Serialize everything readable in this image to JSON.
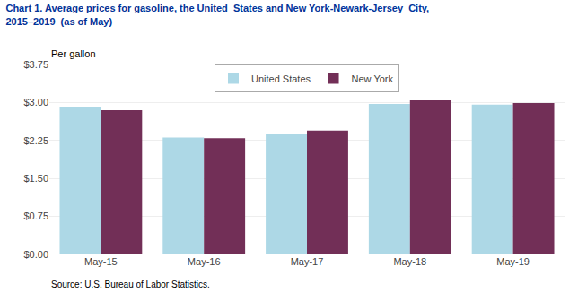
{
  "chart_data": {
    "type": "bar",
    "title": "Chart 1. Average prices for gasoline, the United  States and New York-Newark-Jersey  City,",
    "subtitle": "2015–2019  (as of May)",
    "ylabel": "Per gallon",
    "annotations": [
      "Source: U.S. Bureau of Labor Statistics."
    ],
    "categories": [
      "May-15",
      "May-16",
      "May-17",
      "May-18",
      "May-19"
    ],
    "series": [
      {
        "name": "United States",
        "color": "#ADD8E6",
        "values": [
          2.906,
          2.307,
          2.37,
          2.971,
          2.958
        ]
      },
      {
        "name": "New York",
        "color": "#722F57",
        "values": [
          2.847,
          2.293,
          2.447,
          3.042,
          2.988
        ]
      }
    ],
    "ylim": [
      0,
      3.75
    ],
    "yticks": [
      {
        "value": 0.0,
        "label": "$0.00"
      },
      {
        "value": 0.75,
        "label": "$0.75"
      },
      {
        "value": 1.5,
        "label": "$1.50"
      },
      {
        "value": 2.25,
        "label": "$2.25"
      },
      {
        "value": 3.0,
        "label": "$3.00"
      },
      {
        "value": 3.75,
        "label": "$3.75"
      }
    ],
    "grid": true,
    "legend": "upper center"
  }
}
